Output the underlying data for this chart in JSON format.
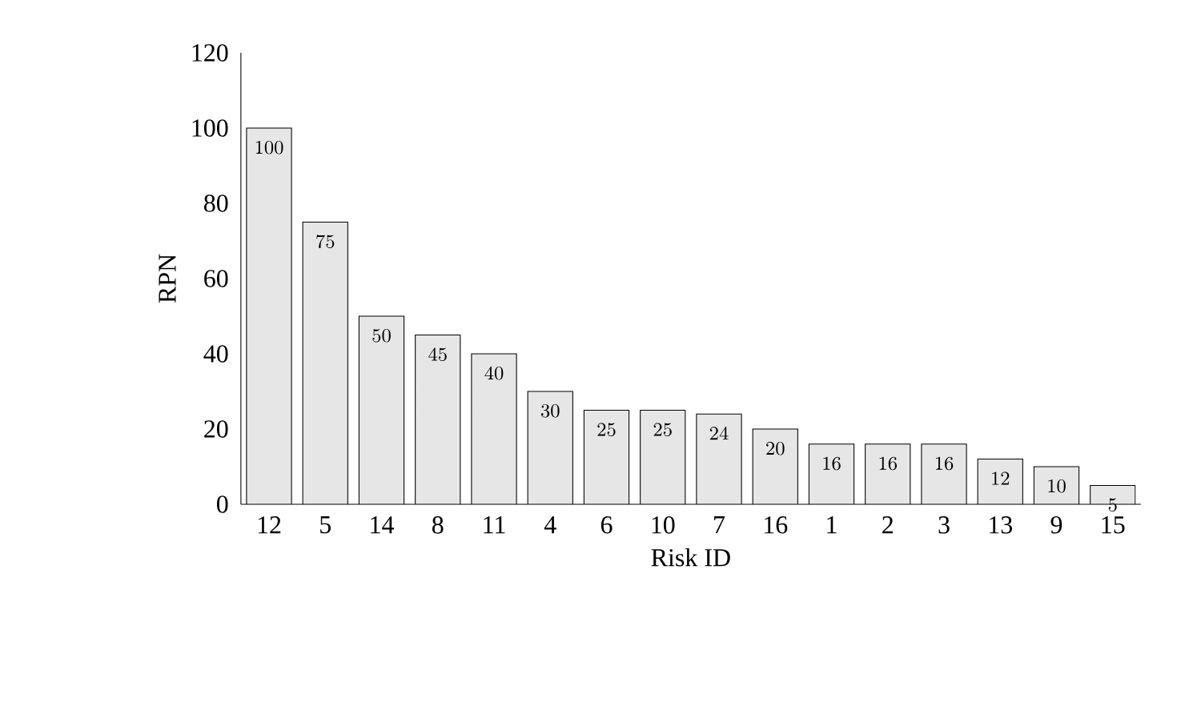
{
  "chart_data": {
    "type": "bar",
    "xlabel": "Risk ID",
    "ylabel": "RPN",
    "categories": [
      "12",
      "5",
      "14",
      "8",
      "11",
      "4",
      "6",
      "10",
      "7",
      "16",
      "1",
      "2",
      "3",
      "13",
      "9",
      "15"
    ],
    "values": [
      100,
      75,
      50,
      45,
      40,
      30,
      25,
      25,
      24,
      20,
      16,
      16,
      16,
      12,
      10,
      5
    ],
    "color": "#e6e6e6",
    "ylim": [
      0,
      120
    ],
    "yticks": [
      0,
      20,
      40,
      60,
      80,
      100,
      120
    ],
    "data_labels": true,
    "grid": false
  }
}
